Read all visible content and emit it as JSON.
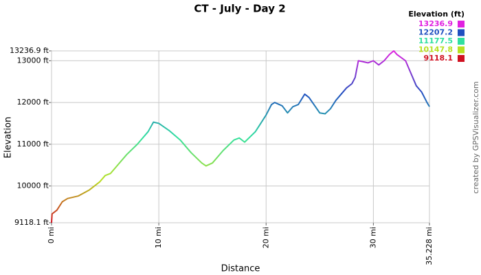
{
  "chart_data": {
    "type": "line",
    "title": "CT - July - Day 2",
    "x_label": "Distance",
    "y_label": "Elevation",
    "watermark": "created by GPSVisualizer.com",
    "legend_title": "Elevation (ft)",
    "color_scale": [
      {
        "value": 13236.9,
        "color": "#e020e0"
      },
      {
        "value": 12207.2,
        "color": "#1f4fc0"
      },
      {
        "value": 11177.5,
        "color": "#30e0a0"
      },
      {
        "value": 10147.8,
        "color": "#b8e020"
      },
      {
        "value": 9118.1,
        "color": "#d01020"
      }
    ],
    "x": [
      0,
      0.05,
      0.5,
      1,
      1.5,
      2.5,
      3.5,
      4.5,
      5,
      5.5,
      6,
      7,
      8,
      9,
      9.5,
      10,
      11,
      12,
      13,
      14,
      14.4,
      15,
      16,
      17,
      17.5,
      18,
      19,
      19.5,
      20,
      20.5,
      20.8,
      21.5,
      22,
      22.5,
      23,
      23.6,
      24,
      25,
      25.5,
      26,
      26.5,
      27.5,
      28,
      28.3,
      28.6,
      29,
      29.5,
      30,
      30.5,
      31,
      31.5,
      31.9,
      32.2,
      33,
      33.5,
      34,
      34.5,
      35,
      35.228
    ],
    "values": [
      9118.1,
      9330,
      9420,
      9620,
      9700,
      9760,
      9900,
      10100,
      10250,
      10300,
      10450,
      10750,
      11000,
      11300,
      11530,
      11500,
      11320,
      11100,
      10800,
      10550,
      10480,
      10550,
      10850,
      11100,
      11150,
      11050,
      11300,
      11500,
      11700,
      11950,
      12000,
      11920,
      11750,
      11900,
      11950,
      12200,
      12120,
      11750,
      11730,
      11850,
      12050,
      12350,
      12450,
      12600,
      13000,
      12980,
      12950,
      13000,
      12900,
      13000,
      13150,
      13236.9,
      13150,
      13000,
      12700,
      12400,
      12250,
      12000,
      11900
    ],
    "xlim": [
      0,
      35.228
    ],
    "ylim": [
      9118.1,
      13236.9
    ],
    "xticks": [
      {
        "value": 0,
        "label": "0 mi"
      },
      {
        "value": 10,
        "label": "10 mi"
      },
      {
        "value": 20,
        "label": "20 mi"
      },
      {
        "value": 30,
        "label": "30 mi"
      },
      {
        "value": 35.228,
        "label": "35.228 mi"
      }
    ],
    "yticks": [
      {
        "value": 9118.1,
        "label": "9118.1 ft"
      },
      {
        "value": 10000,
        "label": "10000 ft"
      },
      {
        "value": 11000,
        "label": "11000 ft"
      },
      {
        "value": 12000,
        "label": "12000 ft"
      },
      {
        "value": 13000,
        "label": "13000 ft"
      },
      {
        "value": 13236.9,
        "label": "13236.9 ft"
      }
    ],
    "grid": true
  }
}
